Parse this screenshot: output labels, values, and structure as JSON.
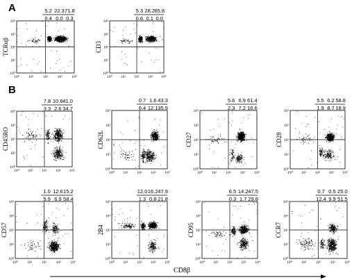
{
  "panel_labels": [
    "A",
    "B"
  ],
  "x_axis_title": "CD8β",
  "tick_labels": [
    "10⁰",
    "10¹",
    "10²",
    "10³",
    "10⁴"
  ],
  "chart_data": [
    {
      "id": "tcrab",
      "type": "scatter",
      "ylabel": "TCRαβ",
      "xlabel": "CD8β",
      "xlim": [
        1,
        10000
      ],
      "ylim": [
        1,
        10000
      ],
      "scale": "log",
      "quadrants_top": [
        "5.2",
        "22.3",
        "71.8"
      ],
      "quadrants_bottom": [
        "0.4",
        "0.0",
        "0.3"
      ],
      "populations": [
        {
          "x": [
            300,
            4000
          ],
          "y": [
            200,
            900
          ],
          "pct": 71.8
        },
        {
          "x": [
            110,
            300
          ],
          "y": [
            200,
            900
          ],
          "pct": 22.3
        },
        {
          "x": [
            3,
            110
          ],
          "y": [
            150,
            600
          ],
          "pct": 5.2
        }
      ]
    },
    {
      "id": "cd3",
      "type": "scatter",
      "ylabel": "CD3",
      "xlabel": "CD8β",
      "xlim": [
        1,
        10000
      ],
      "ylim": [
        1,
        10000
      ],
      "scale": "log",
      "quadrants_top": [
        "5.3",
        "28.2",
        "65.8"
      ],
      "quadrants_bottom": [
        "0.6",
        "0.1",
        "0.0"
      ],
      "populations": [
        {
          "x": [
            300,
            4000
          ],
          "y": [
            200,
            900
          ],
          "pct": 65.8
        },
        {
          "x": [
            110,
            300
          ],
          "y": [
            200,
            900
          ],
          "pct": 28.2
        },
        {
          "x": [
            3,
            110
          ],
          "y": [
            150,
            600
          ],
          "pct": 5.3
        }
      ]
    },
    {
      "id": "cd45ro",
      "type": "scatter",
      "ylabel": "CD45RO",
      "xlabel": "CD8β",
      "xlim": [
        1,
        10000
      ],
      "ylim": [
        1,
        10000
      ],
      "scale": "log",
      "quadrants_top": [
        "7.8",
        "10.6",
        "41.0"
      ],
      "quadrants_bottom": [
        "3.3",
        "2.6",
        "34.7"
      ],
      "populations": [
        {
          "x": [
            300,
            3000
          ],
          "y": [
            40,
            1000
          ],
          "pct": 41.0
        },
        {
          "x": [
            300,
            3000
          ],
          "y": [
            2,
            40
          ],
          "pct": 34.7
        },
        {
          "x": [
            1,
            100
          ],
          "y": [
            40,
            800
          ],
          "pct": 7.8
        },
        {
          "x": [
            100,
            300
          ],
          "y": [
            40,
            800
          ],
          "pct": 10.6
        }
      ]
    },
    {
      "id": "cd62l",
      "type": "scatter",
      "ylabel": "CD62L",
      "xlabel": "CD8β",
      "xlim": [
        1,
        10000
      ],
      "ylim": [
        1,
        10000
      ],
      "scale": "log",
      "quadrants_top": [
        "0.7",
        "1.6",
        "43.3"
      ],
      "quadrants_bottom": [
        "6.4",
        "12.1",
        "35.9"
      ],
      "populations": [
        {
          "x": [
            500,
            3000
          ],
          "y": [
            60,
            600
          ],
          "pct": 43.3
        },
        {
          "x": [
            150,
            2000
          ],
          "y": [
            2,
            30
          ],
          "pct": 35.9
        },
        {
          "x": [
            100,
            300
          ],
          "y": [
            2,
            30
          ],
          "pct": 12.1
        },
        {
          "x": [
            2,
            100
          ],
          "y": [
            2,
            40
          ],
          "pct": 6.4
        }
      ]
    },
    {
      "id": "cd27",
      "type": "scatter",
      "ylabel": "CD27",
      "xlabel": "CD8β",
      "xlim": [
        1,
        10000
      ],
      "ylim": [
        1,
        10000
      ],
      "scale": "log",
      "quadrants_top": [
        "5.6",
        "6.9",
        "61.4"
      ],
      "quadrants_bottom": [
        "2.3",
        "7.2",
        "16.6"
      ],
      "populations": [
        {
          "x": [
            300,
            2000
          ],
          "y": [
            60,
            500
          ],
          "pct": 61.4
        },
        {
          "x": [
            200,
            1500
          ],
          "y": [
            2,
            15
          ],
          "pct": 16.6
        },
        {
          "x": [
            2,
            100
          ],
          "y": [
            40,
            300
          ],
          "pct": 5.6
        },
        {
          "x": [
            100,
            300
          ],
          "y": [
            2,
            40
          ],
          "pct": 7.2
        }
      ]
    },
    {
      "id": "cd28",
      "type": "scatter",
      "ylabel": "CD28",
      "xlabel": "CD8β",
      "xlim": [
        1,
        10000
      ],
      "ylim": [
        1,
        10000
      ],
      "scale": "log",
      "quadrants_top": [
        "5.5",
        "6.2",
        "58.8"
      ],
      "quadrants_bottom": [
        "1.9",
        "8.7",
        "18.9"
      ],
      "populations": [
        {
          "x": [
            300,
            2000
          ],
          "y": [
            60,
            400
          ],
          "pct": 58.8
        },
        {
          "x": [
            200,
            2000
          ],
          "y": [
            3,
            30
          ],
          "pct": 18.9
        },
        {
          "x": [
            2,
            100
          ],
          "y": [
            50,
            300
          ],
          "pct": 5.5
        },
        {
          "x": [
            100,
            300
          ],
          "y": [
            5,
            40
          ],
          "pct": 8.7
        }
      ]
    },
    {
      "id": "cd57",
      "type": "scatter",
      "ylabel": "CD57",
      "xlabel": "CD8β",
      "xlim": [
        1,
        10000
      ],
      "ylim": [
        1,
        10000
      ],
      "scale": "log",
      "quadrants_top": [
        "1.0",
        "12.6",
        "15.2"
      ],
      "quadrants_bottom": [
        "5.9",
        "6.9",
        "58.4"
      ],
      "populations": [
        {
          "x": [
            150,
            1500
          ],
          "y": [
            2,
            25
          ],
          "pct": 58.4
        },
        {
          "x": [
            60,
            250
          ],
          "y": [
            40,
            1000
          ],
          "pct": 12.6
        },
        {
          "x": [
            250,
            1200
          ],
          "y": [
            40,
            400
          ],
          "pct": 15.2
        },
        {
          "x": [
            2,
            100
          ],
          "y": [
            2,
            30
          ],
          "pct": 5.9
        }
      ]
    },
    {
      "id": "2b4",
      "type": "scatter",
      "ylabel": "2B4",
      "xlabel": "CD8β",
      "xlim": [
        1,
        10000
      ],
      "ylim": [
        1,
        10000
      ],
      "scale": "log",
      "quadrants_top": [
        "12.0",
        "16.2",
        "47.9"
      ],
      "quadrants_bottom": [
        "1.3",
        "0.8",
        "21.8"
      ],
      "populations": [
        {
          "x": [
            300,
            2500
          ],
          "y": [
            100,
            500
          ],
          "pct": 47.9
        },
        {
          "x": [
            300,
            2500
          ],
          "y": [
            2,
            30
          ],
          "pct": 21.8
        },
        {
          "x": [
            2,
            100
          ],
          "y": [
            100,
            400
          ],
          "pct": 12.0
        },
        {
          "x": [
            100,
            300
          ],
          "y": [
            80,
            500
          ],
          "pct": 16.2
        }
      ]
    },
    {
      "id": "cd95",
      "type": "scatter",
      "ylabel": "CD95",
      "xlabel": "CD8β",
      "xlim": [
        1,
        10000
      ],
      "ylim": [
        1,
        10000
      ],
      "scale": "log",
      "quadrants_top": [
        "6.5",
        "14.2",
        "47.5"
      ],
      "quadrants_bottom": [
        "0.3",
        "1.7",
        "29.8"
      ],
      "populations": [
        {
          "x": [
            300,
            3000
          ],
          "y": [
            40,
            300
          ],
          "pct": 47.5
        },
        {
          "x": [
            300,
            3000
          ],
          "y": [
            3,
            40
          ],
          "pct": 29.8
        },
        {
          "x": [
            2,
            100
          ],
          "y": [
            20,
            150
          ],
          "pct": 6.5
        },
        {
          "x": [
            100,
            300
          ],
          "y": [
            30,
            300
          ],
          "pct": 14.2
        }
      ]
    },
    {
      "id": "ccr7",
      "type": "scatter",
      "ylabel": "CCR7",
      "xlabel": "CD8β",
      "xlim": [
        1,
        10000
      ],
      "ylim": [
        1,
        10000
      ],
      "scale": "log",
      "quadrants_top": [
        "0.7",
        "0.5",
        "25.0"
      ],
      "quadrants_bottom": [
        "12.4",
        "9.9",
        "51.5"
      ],
      "populations": [
        {
          "x": [
            300,
            2500
          ],
          "y": [
            2,
            40
          ],
          "pct": 51.5
        },
        {
          "x": [
            400,
            2500
          ],
          "y": [
            50,
            400
          ],
          "pct": 25.0
        },
        {
          "x": [
            2,
            100
          ],
          "y": [
            3,
            40
          ],
          "pct": 12.4
        },
        {
          "x": [
            100,
            300
          ],
          "y": [
            3,
            40
          ],
          "pct": 9.9
        }
      ]
    }
  ]
}
